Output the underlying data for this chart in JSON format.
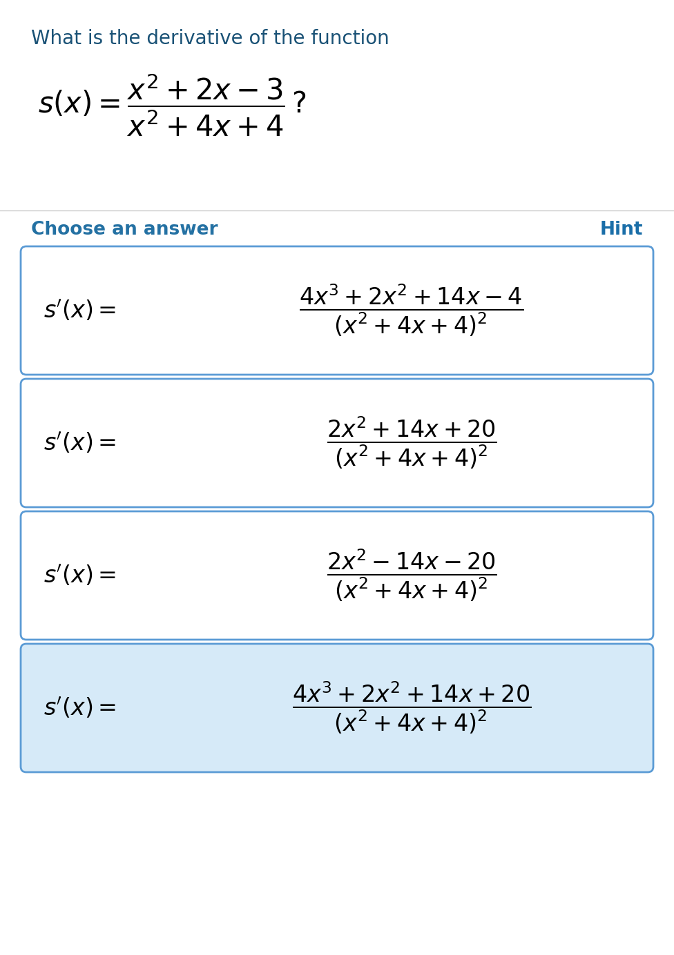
{
  "title": "What is the derivative of the function",
  "title_color": "#1a5276",
  "title_fontsize": 20,
  "question_fontsize": 30,
  "choose_answer_text": "Choose an answer",
  "hint_text": "Hint",
  "section_label_color": "#2471a3",
  "hint_color": "#1a6ea8",
  "section_fontsize": 19,
  "answers": [
    {
      "numerator": "4x^3 + 2x^2 + 14x - 4",
      "denominator": "(x^2 + 4x + 4)^2",
      "border_color": "#5b9bd5",
      "bg_color": "#ffffff",
      "selected": false
    },
    {
      "numerator": "2x^2 + 14x + 20",
      "denominator": "(x^2 + 4x + 4)^2",
      "border_color": "#5b9bd5",
      "bg_color": "#ffffff",
      "selected": false
    },
    {
      "numerator": "2x^2 - 14x - 20",
      "denominator": "(x^2 + 4x + 4)^2",
      "border_color": "#5b9bd5",
      "bg_color": "#ffffff",
      "selected": false
    },
    {
      "numerator": "4x^3 + 2x^2 + 14x + 20",
      "denominator": "(x^2 + 4x + 4)^2",
      "border_color": "#5b9bd5",
      "bg_color": "#d6eaf8",
      "selected": true
    }
  ],
  "answer_fontsize": 24,
  "bg_color": "#ffffff",
  "divider_color": "#cccccc",
  "fig_width": 9.76,
  "fig_height": 13.84
}
